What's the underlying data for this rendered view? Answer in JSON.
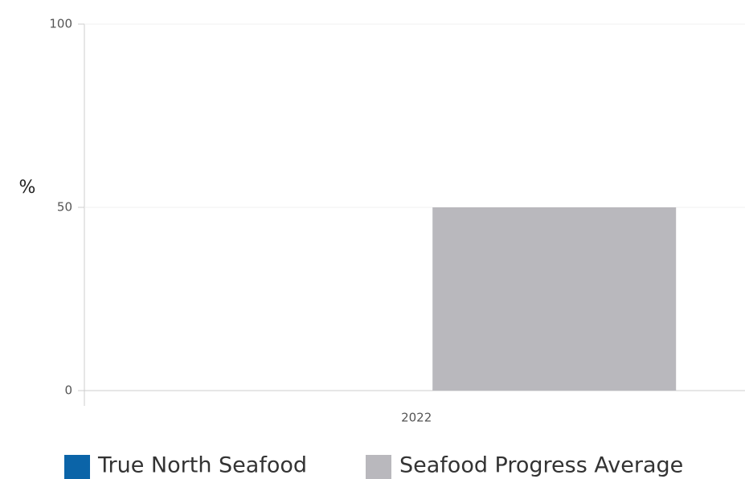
{
  "chart_data": {
    "type": "bar",
    "y_label": "%",
    "categories": [
      "2022"
    ],
    "series": [
      {
        "name": "True North Seafood",
        "color": "#0b64a8",
        "values": [
          0
        ]
      },
      {
        "name": "Seafood Progress Average",
        "color": "#b9b8bd",
        "values": [
          50
        ]
      }
    ],
    "ylim": [
      0,
      100
    ],
    "yticks": [
      0,
      50,
      100
    ],
    "grid": true,
    "legend": "bottom"
  }
}
